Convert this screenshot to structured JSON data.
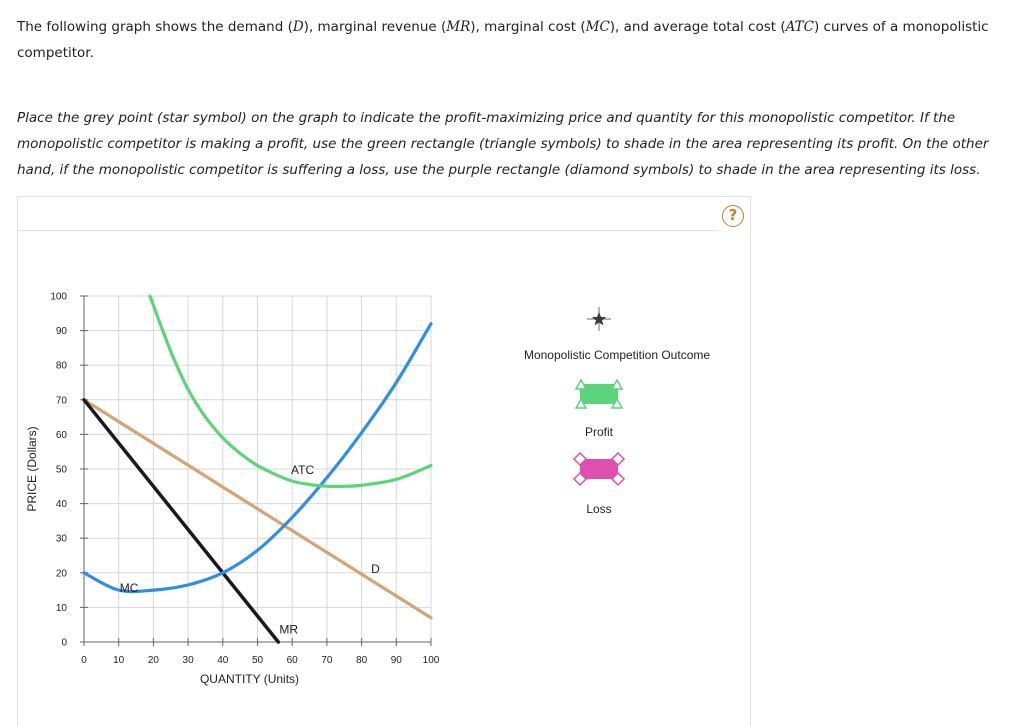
{
  "question": {
    "p1": "The following graph shows the demand (",
    "d": "D",
    "p2": "), marginal revenue (",
    "mr": "MR",
    "p3": "), marginal cost (",
    "mc": "MC",
    "p4": "), and average total cost (",
    "atc": "ATC",
    "p5": ") curves of a monopolistic competitor."
  },
  "instructions": "Place the grey point (star symbol) on the graph to indicate the profit-maximizing price and quantity for this monopolistic competitor. If the monopolistic competitor is making a profit, use the green rectangle (triangle symbols) to shade in the area representing its profit. On the other hand, if the monopolistic competitor is suffering a loss, use the purple rectangle (diamond symbols) to shade in the area representing its loss.",
  "help_label": "?",
  "legend": {
    "title": "Monopolistic Competition Outcome",
    "profit_label": "Profit",
    "loss_label": "Loss",
    "profit_color": "#5bd47c",
    "loss_color": "#de4fae",
    "point_icon": "star-icon"
  },
  "chart_data": {
    "type": "line",
    "xlabel": "QUANTITY (Units)",
    "ylabel": "PRICE (Dollars)",
    "xlim": [
      0,
      100
    ],
    "ylim": [
      0,
      100
    ],
    "xticks": [
      0,
      10,
      20,
      30,
      40,
      50,
      60,
      70,
      80,
      90,
      100
    ],
    "yticks": [
      0,
      10,
      20,
      30,
      40,
      50,
      60,
      70,
      80,
      90,
      100
    ],
    "grid": true,
    "series": [
      {
        "name": "D",
        "color": "#d4a574",
        "x": [
          0,
          100
        ],
        "y": [
          70,
          7
        ]
      },
      {
        "name": "MR",
        "color": "#1a1a1a",
        "x": [
          0,
          56
        ],
        "y": [
          70,
          0
        ]
      },
      {
        "name": "MC",
        "color": "#2f8ee6",
        "x": [
          0,
          10,
          20,
          30,
          40,
          50,
          60,
          70,
          80,
          90,
          100
        ],
        "y": [
          20,
          15,
          15,
          16.5,
          20,
          26.5,
          36,
          47.5,
          60.5,
          75,
          92
        ]
      },
      {
        "name": "ATC",
        "color": "#5bd47c",
        "x": [
          19,
          25,
          30,
          35,
          40,
          45,
          50,
          55,
          60,
          65,
          70,
          75,
          80,
          90,
          100
        ],
        "y": [
          100,
          84,
          73,
          65,
          59,
          54.5,
          51,
          48.5,
          46.5,
          45.5,
          45,
          45,
          45.3,
          47,
          51
        ]
      }
    ],
    "curve_labels": [
      {
        "name": "ATC",
        "text": "ATC",
        "x": 63,
        "y": 48.5
      },
      {
        "name": "MC",
        "text": "MC",
        "x": 13,
        "y": 14.5
      },
      {
        "name": "MR",
        "text": "MR",
        "x": 59,
        "y": 2.5
      },
      {
        "name": "D",
        "text": "D",
        "x": 84,
        "y": 20
      }
    ]
  }
}
